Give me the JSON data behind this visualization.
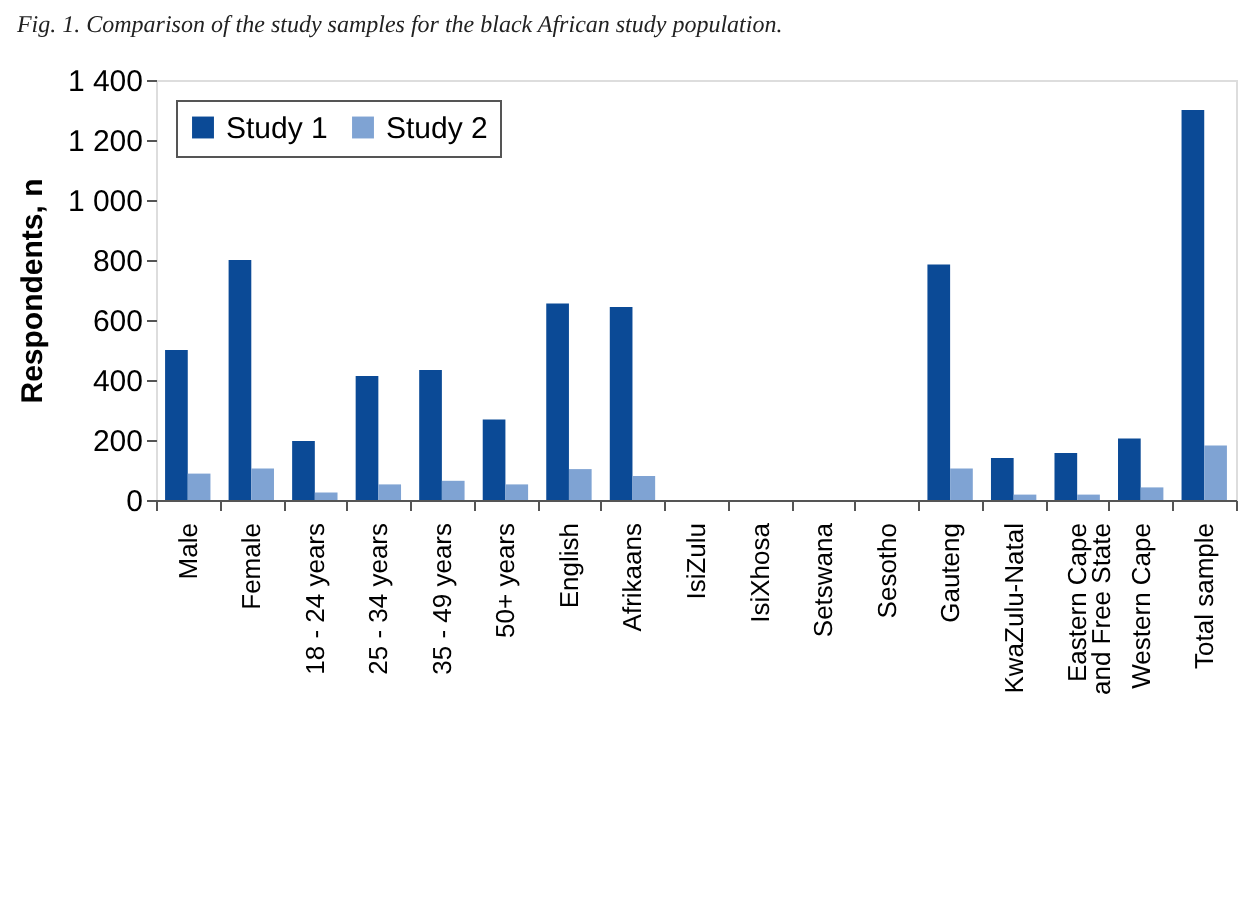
{
  "chart_data": {
    "type": "bar",
    "annotations": [
      "Fig. 1. Comparison of the study samples for the black African study population."
    ],
    "ylabel": "Respondents, n",
    "categories": [
      "Male",
      "Female",
      "18 - 24 years",
      "25 - 34 years",
      "35 - 49 years",
      "50+ years",
      "English",
      "Afrikaans",
      "IsiZulu",
      "IsiXhosa",
      "Setswana",
      "Sesotho",
      "Gauteng",
      "KwaZulu-Natal",
      "Eastern Cape and Free State",
      "Western Cape",
      "Total sample"
    ],
    "series": [
      {
        "name": "Study 1",
        "color": "#0b4a96",
        "values": [
          500,
          800,
          197,
          413,
          433,
          268,
          655,
          643,
          0,
          0,
          0,
          0,
          785,
          140,
          157,
          205,
          1300
        ]
      },
      {
        "name": "Study 2",
        "color": "#7fa3d3",
        "values": [
          88,
          105,
          25,
          52,
          64,
          52,
          103,
          80,
          0,
          0,
          0,
          0,
          105,
          18,
          18,
          42,
          182
        ]
      }
    ],
    "ylim": [
      0,
      1400
    ],
    "yticks": [
      {
        "value": 0,
        "label": "0"
      },
      {
        "value": 200,
        "label": "200"
      },
      {
        "value": 400,
        "label": "400"
      },
      {
        "value": 600,
        "label": "600"
      },
      {
        "value": 800,
        "label": "800"
      },
      {
        "value": 1000,
        "label": "1 000"
      },
      {
        "value": 1200,
        "label": "1 200"
      },
      {
        "value": 1400,
        "label": "1 400"
      }
    ],
    "grid": false,
    "legend": "top left"
  }
}
